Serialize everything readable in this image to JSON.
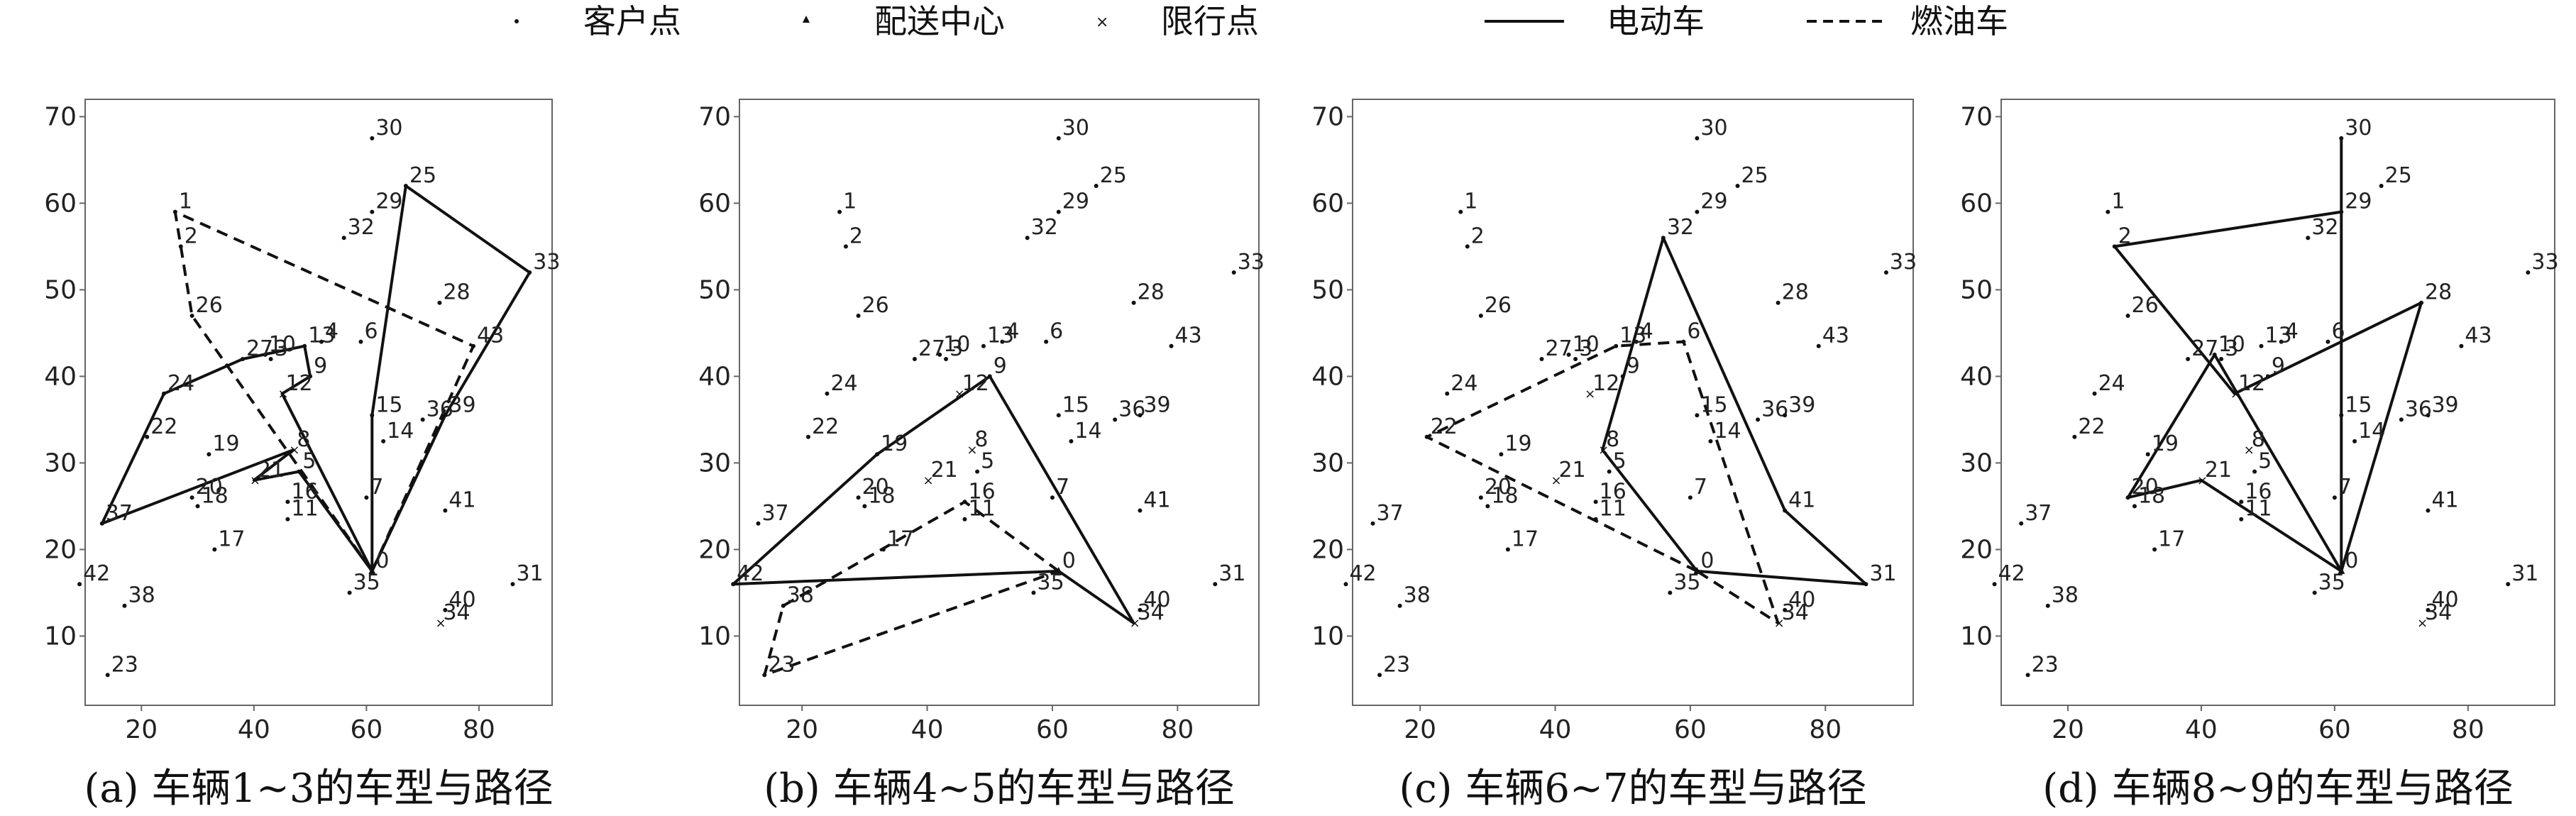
{
  "legend": {
    "customer": "客户点",
    "depot": "配送中心",
    "restricted": "限行点",
    "electric": "电动车",
    "fuel": "燃油车"
  },
  "chart_data": [
    {
      "type": "scatter",
      "caption": "(a) 车辆1~3的车型与路径",
      "xlim": [
        10,
        93
      ],
      "ylim": [
        2,
        72
      ],
      "xticks": [
        20,
        40,
        60,
        80
      ],
      "yticks": [
        10,
        20,
        30,
        40,
        50,
        60,
        70
      ],
      "routes": [
        {
          "kind": "electric",
          "path": [
            0,
            15,
            25,
            33,
            39,
            0
          ]
        },
        {
          "kind": "electric",
          "path": [
            0,
            5,
            21,
            8,
            37,
            24,
            27,
            13,
            9,
            12,
            0
          ]
        },
        {
          "kind": "fuel",
          "path": [
            0,
            43,
            1,
            2,
            26,
            0
          ]
        }
      ]
    },
    {
      "type": "scatter",
      "caption": "(b) 车辆4~5的车型与路径",
      "xlim": [
        10,
        93
      ],
      "ylim": [
        2,
        72
      ],
      "xticks": [
        20,
        40,
        60,
        80
      ],
      "yticks": [
        10,
        20,
        30,
        40,
        50,
        60,
        70
      ],
      "routes": [
        {
          "kind": "electric",
          "path": [
            0,
            42,
            19,
            9,
            34,
            0
          ]
        },
        {
          "kind": "fuel",
          "path": [
            0,
            16,
            38,
            23,
            0
          ]
        }
      ]
    },
    {
      "type": "scatter",
      "caption": "(c) 车辆6~7的车型与路径",
      "xlim": [
        10,
        93
      ],
      "ylim": [
        2,
        72
      ],
      "xticks": [
        20,
        40,
        60,
        80
      ],
      "yticks": [
        10,
        20,
        30,
        40,
        50,
        60,
        70
      ],
      "routes": [
        {
          "kind": "electric",
          "path": [
            0,
            31,
            41,
            32,
            8,
            0
          ]
        },
        {
          "kind": "fuel",
          "path": [
            0,
            22,
            13,
            6,
            34,
            0
          ]
        }
      ]
    },
    {
      "type": "scatter",
      "caption": "(d) 车辆8~9的车型与路径",
      "xlim": [
        10,
        93
      ],
      "ylim": [
        2,
        72
      ],
      "xticks": [
        20,
        40,
        60,
        80
      ],
      "yticks": [
        10,
        20,
        30,
        40,
        50,
        60,
        70
      ],
      "routes": [
        {
          "kind": "electric",
          "path": [
            0,
            30,
            29,
            2,
            12,
            28,
            0
          ]
        },
        {
          "kind": "electric",
          "path": [
            0,
            21,
            20,
            10,
            0
          ]
        }
      ]
    }
  ],
  "points": [
    {
      "id": 0,
      "x": 61,
      "y": 17.5
    },
    {
      "id": 1,
      "x": 26,
      "y": 59
    },
    {
      "id": 2,
      "x": 27,
      "y": 55
    },
    {
      "id": 3,
      "x": 43,
      "y": 42
    },
    {
      "id": 4,
      "x": 52,
      "y": 44
    },
    {
      "id": 5,
      "x": 48,
      "y": 29
    },
    {
      "id": 6,
      "x": 59,
      "y": 44
    },
    {
      "id": 7,
      "x": 60,
      "y": 26
    },
    {
      "id": 8,
      "x": 47,
      "y": 31.5
    },
    {
      "id": 9,
      "x": 50,
      "y": 40
    },
    {
      "id": 10,
      "x": 42,
      "y": 42.5
    },
    {
      "id": 11,
      "x": 46,
      "y": 23.5
    },
    {
      "id": 12,
      "x": 45,
      "y": 38
    },
    {
      "id": 13,
      "x": 49,
      "y": 43.5
    },
    {
      "id": 14,
      "x": 63,
      "y": 32.5
    },
    {
      "id": 15,
      "x": 61,
      "y": 35.5
    },
    {
      "id": 16,
      "x": 46,
      "y": 25.5
    },
    {
      "id": 17,
      "x": 33,
      "y": 20
    },
    {
      "id": 18,
      "x": 30,
      "y": 25
    },
    {
      "id": 19,
      "x": 32,
      "y": 31
    },
    {
      "id": 20,
      "x": 29,
      "y": 26
    },
    {
      "id": 21,
      "x": 40,
      "y": 28
    },
    {
      "id": 22,
      "x": 21,
      "y": 33
    },
    {
      "id": 23,
      "x": 14,
      "y": 5.5
    },
    {
      "id": 24,
      "x": 24,
      "y": 38
    },
    {
      "id": 25,
      "x": 67,
      "y": 62
    },
    {
      "id": 26,
      "x": 29,
      "y": 47
    },
    {
      "id": 27,
      "x": 38,
      "y": 42
    },
    {
      "id": 28,
      "x": 73,
      "y": 48.5
    },
    {
      "id": 29,
      "x": 61,
      "y": 59
    },
    {
      "id": 30,
      "x": 61,
      "y": 67.5
    },
    {
      "id": 31,
      "x": 86,
      "y": 16
    },
    {
      "id": 32,
      "x": 56,
      "y": 56
    },
    {
      "id": 33,
      "x": 89,
      "y": 52
    },
    {
      "id": 34,
      "x": 73,
      "y": 11.5
    },
    {
      "id": 35,
      "x": 57,
      "y": 15
    },
    {
      "id": 36,
      "x": 70,
      "y": 35
    },
    {
      "id": 37,
      "x": 13,
      "y": 23
    },
    {
      "id": 38,
      "x": 17,
      "y": 13.5
    },
    {
      "id": 39,
      "x": 74,
      "y": 35.5
    },
    {
      "id": 40,
      "x": 74,
      "y": 13
    },
    {
      "id": 41,
      "x": 74,
      "y": 24.5
    },
    {
      "id": 42,
      "x": 9,
      "y": 16
    },
    {
      "id": 43,
      "x": 79,
      "y": 43.5
    }
  ],
  "depot_id": 0,
  "restricted_ids": [
    8,
    12,
    21,
    34
  ]
}
